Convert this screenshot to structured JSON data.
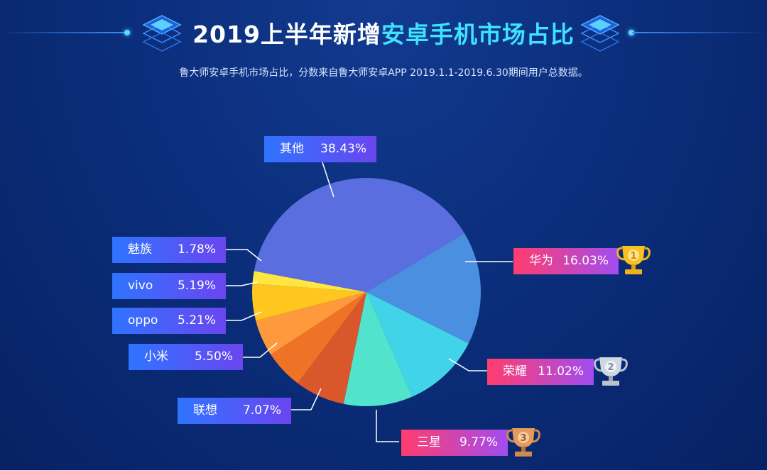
{
  "header": {
    "title_part1": "2019上半年新增",
    "title_part2": "安卓手机市场占比",
    "subtitle": "鲁大师安卓手机市场占比，分数来自鲁大师安卓APP 2019.1.1-2019.6.30期间用户总数据。"
  },
  "colors": {
    "background": "#0a2c78",
    "title_highlight": "#3ee3ff",
    "label_blue_start": "#2f74ff",
    "label_blue_end": "#6a45f0",
    "label_pink_start": "#ff3d6e",
    "label_pink_end": "#a24cf0"
  },
  "chart_data": {
    "type": "pie",
    "start_angle_deg": 59,
    "direction": "clockwise",
    "slices": [
      {
        "name": "华为",
        "value": 16.03,
        "label": "16.03%",
        "color": "#4a8fe0",
        "rank": 1,
        "trophy": "gold"
      },
      {
        "name": "荣耀",
        "value": 11.02,
        "label": "11.02%",
        "color": "#41d3e8",
        "rank": 2,
        "trophy": "silver"
      },
      {
        "name": "三星",
        "value": 9.77,
        "label": "9.77%",
        "color": "#52e3cc",
        "rank": 3,
        "trophy": "bronze"
      },
      {
        "name": "联想",
        "value": 7.07,
        "label": "7.07%",
        "color": "#d9572b"
      },
      {
        "name": "小米",
        "value": 5.5,
        "label": "5.50%",
        "color": "#f07226"
      },
      {
        "name": "oppo",
        "value": 5.21,
        "label": "5.21%",
        "color": "#ff9a3c"
      },
      {
        "name": "vivo",
        "value": 5.19,
        "label": "5.19%",
        "color": "#ffc61f"
      },
      {
        "name": "魅族",
        "value": 1.78,
        "label": "1.78%",
        "color": "#ffe640"
      },
      {
        "name": "其他",
        "value": 38.43,
        "label": "38.43%",
        "color": "#5b6ee0"
      }
    ]
  }
}
